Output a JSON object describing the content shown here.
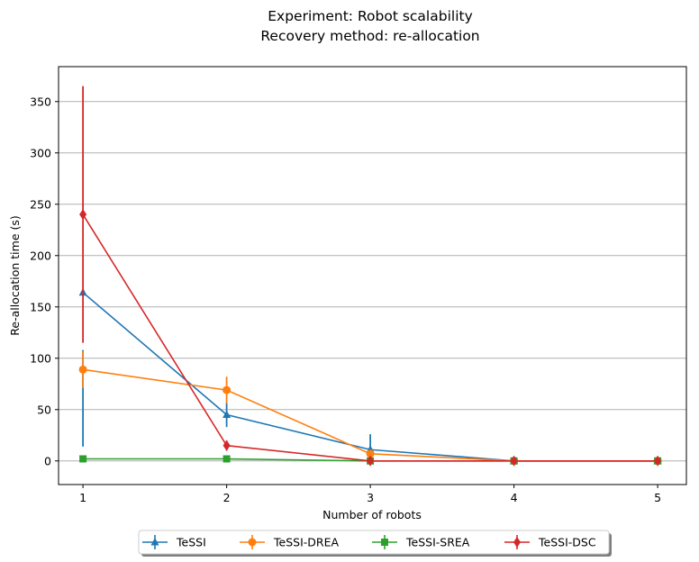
{
  "chart_data": {
    "type": "line",
    "title": "Experiment: Robot scalability",
    "subtitle": "Recovery method: re-allocation",
    "xlabel": "Number of robots",
    "ylabel": "Re-allocation time (s)",
    "x": [
      1,
      2,
      3,
      4,
      5
    ],
    "xlim": [
      0.83,
      5.2
    ],
    "ylim": [
      -23,
      384
    ],
    "yticks": [
      0,
      50,
      100,
      150,
      200,
      250,
      300,
      350
    ],
    "xticks": [
      1,
      2,
      3,
      4,
      5
    ],
    "grid": "y-major",
    "legend_position": "bottom-center",
    "series": [
      {
        "name": "TeSSI",
        "color": "#1f77b4",
        "marker": "triangle",
        "values": [
          164,
          45,
          11,
          0,
          0
        ],
        "error": [
          [
            14,
            108
          ],
          [
            33,
            57
          ],
          [
            3,
            26
          ],
          [
            0,
            0
          ],
          [
            0,
            0
          ]
        ]
      },
      {
        "name": "TeSSI-DREA",
        "color": "#ff7f0e",
        "marker": "circle",
        "values": [
          89,
          69,
          7,
          0,
          0
        ],
        "error": [
          [
            71,
            107
          ],
          [
            56,
            82
          ],
          [
            4,
            10
          ],
          [
            0,
            0
          ],
          [
            0,
            0
          ]
        ]
      },
      {
        "name": "TeSSI-SREA",
        "color": "#2ca02c",
        "marker": "square",
        "values": [
          2,
          2,
          0,
          0,
          0
        ],
        "error": [
          [
            0,
            4
          ],
          [
            0,
            4
          ],
          [
            0,
            0
          ],
          [
            0,
            0
          ],
          [
            0,
            0
          ]
        ]
      },
      {
        "name": "TeSSI-DSC",
        "color": "#d62728",
        "marker": "diamond",
        "values": [
          240,
          15,
          0,
          0,
          0
        ],
        "error": [
          [
            115,
            365
          ],
          [
            10,
            20
          ],
          [
            0,
            0
          ],
          [
            0,
            0
          ],
          [
            0,
            0
          ]
        ]
      }
    ]
  }
}
